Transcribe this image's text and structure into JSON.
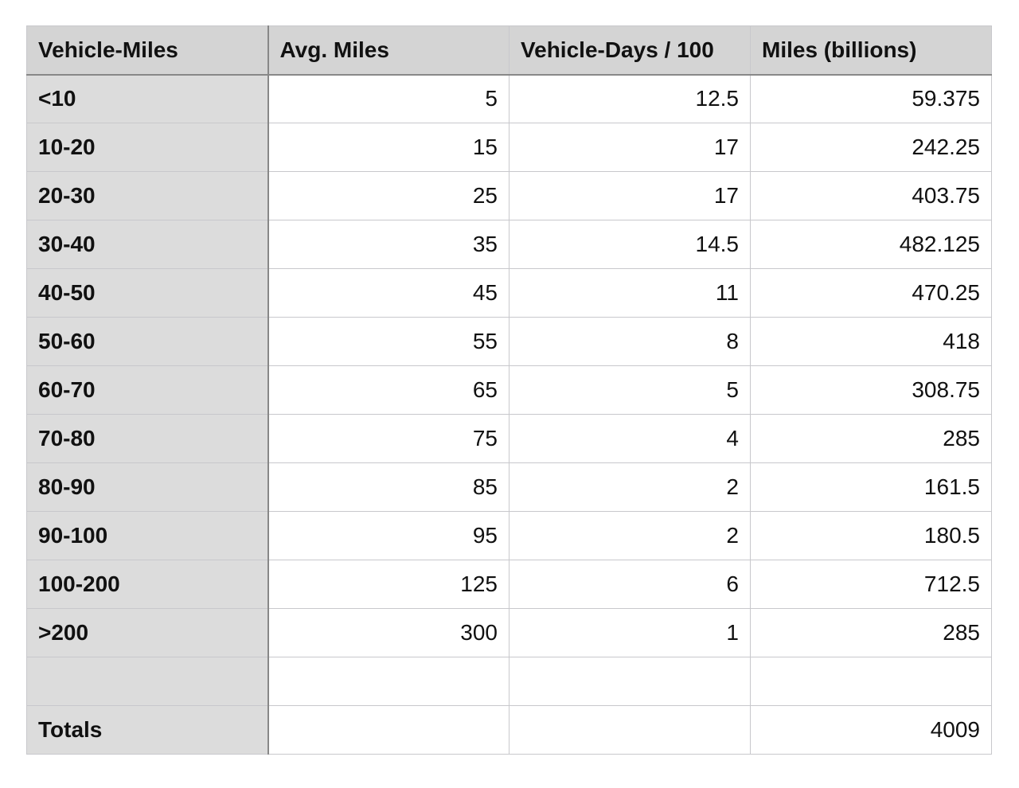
{
  "table": {
    "header": [
      "Vehicle-Miles",
      "Avg. Miles",
      "Vehicle-Days / 100",
      "Miles (billions)"
    ],
    "rows": [
      [
        "<10",
        5,
        12.5,
        59.375
      ],
      [
        "10-20",
        15,
        17,
        242.25
      ],
      [
        "20-30",
        25,
        17,
        403.75
      ],
      [
        "30-40",
        35,
        14.5,
        482.125
      ],
      [
        "40-50",
        45,
        11,
        470.25
      ],
      [
        "50-60",
        55,
        8,
        418
      ],
      [
        "60-70",
        65,
        5,
        308.75
      ],
      [
        "70-80",
        75,
        4,
        285
      ],
      [
        "80-90",
        85,
        2,
        161.5
      ],
      [
        "90-100",
        95,
        2,
        180.5
      ],
      [
        "100-200",
        125,
        6,
        712.5
      ],
      [
        ">200",
        300,
        1,
        285
      ],
      [
        null,
        null,
        null,
        null
      ],
      [
        "Totals",
        null,
        null,
        4009
      ]
    ]
  }
}
